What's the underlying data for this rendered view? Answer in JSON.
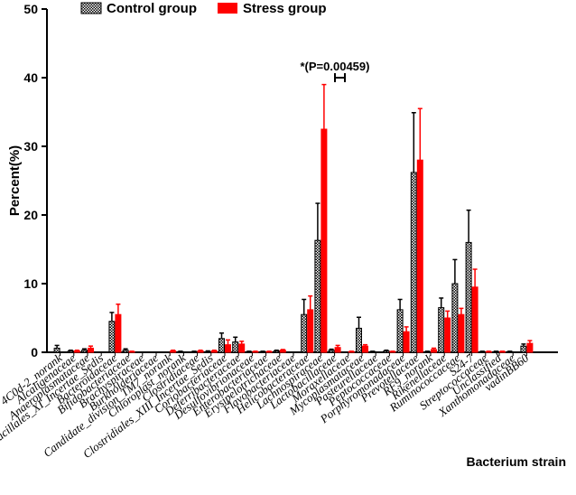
{
  "chart_data": {
    "type": "bar",
    "ylabel": "Percent(%)",
    "xlabel": "Bacterium strain",
    "ylim": [
      0,
      50
    ],
    "yticks": [
      0,
      10,
      20,
      30,
      40,
      50
    ],
    "annotation": "*(P=0.00459)",
    "annotation_category": "Lachnospiraceae",
    "legend_position": "top",
    "categories": [
      "4C0d-2_norank",
      "Alcaligenaceae",
      "Anaeroplasmataceae",
      "Bacillales_XI_Incertae_Sedis",
      "Bacteroidaceae",
      "Bifidobacteriaceae",
      "Brachyspiraceae",
      "Burkholderiaceae",
      "Candidate_division_TM7_norank",
      "Chloroplast_norank",
      "Clostridiaceae",
      "Clostridiales_XIII_Incertae_Sedis",
      "Coriobacteriaceae",
      "Deferribacteraceae",
      "Desulfovibrionaceae",
      "Enterobacteriaceae",
      "Erysipelotrichaceae",
      "Flavobacteriaceae",
      "Helicobacteraceae",
      "Lachnospiraceae",
      "Lactobacillaceae",
      "Moraxellaceae",
      "Mycoplasmataceae",
      "Pasteurellaceae",
      "Peptococcaceae",
      "Porphyromonadaceae",
      "Prevotellaceae",
      "RF9_norank",
      "Rikenellaceae",
      "Ruminococcaceae",
      "S24-7",
      "Streptococcaceae",
      "Unclassified",
      "Xanthomonadaceae",
      "vadinBB60"
    ],
    "series": [
      {
        "name": "Control group",
        "color": "#ffffff",
        "values": [
          0.6,
          0.2,
          0.3,
          0,
          4.5,
          0.3,
          0,
          0,
          0,
          0.1,
          0.1,
          0.1,
          2.0,
          1.5,
          0.1,
          0.1,
          0.2,
          0,
          5.5,
          16.3,
          0.3,
          0,
          3.5,
          0.1,
          0.2,
          6.2,
          26.2,
          0.1,
          6.5,
          10.0,
          16.0,
          0.1,
          0.1,
          0.1,
          0.9
        ],
        "errors": [
          0.4,
          0.1,
          0.2,
          0,
          1.3,
          0.2,
          0,
          0,
          0,
          0.05,
          0.05,
          0.1,
          0.8,
          0.7,
          0.05,
          0.05,
          0.1,
          0,
          2.2,
          5.4,
          0.15,
          0,
          1.6,
          0.05,
          0.1,
          1.5,
          8.7,
          0.05,
          1.4,
          3.5,
          4.7,
          0.05,
          0.05,
          0.05,
          0.3
        ]
      },
      {
        "name": "Stress group",
        "color": "#ff0000",
        "values": [
          0,
          0.2,
          0.6,
          0,
          5.5,
          0.1,
          0,
          0,
          0.2,
          0,
          0.2,
          0.2,
          1.1,
          1.2,
          0.1,
          0.1,
          0.3,
          0,
          6.2,
          32.5,
          0.7,
          0.1,
          0.9,
          0,
          0.1,
          3.0,
          28.0,
          0.4,
          5.0,
          5.5,
          9.5,
          0.1,
          0.1,
          0,
          1.3
        ],
        "errors": [
          0,
          0.1,
          0.3,
          0,
          1.5,
          0.05,
          0,
          0,
          0.1,
          0,
          0.1,
          0.1,
          0.7,
          0.4,
          0.05,
          0.05,
          0.1,
          0,
          2.0,
          6.5,
          0.3,
          0.05,
          0.2,
          0,
          0.05,
          0.7,
          7.5,
          0.2,
          1.0,
          0.9,
          2.6,
          0.05,
          0.05,
          0,
          0.4
        ]
      }
    ]
  }
}
